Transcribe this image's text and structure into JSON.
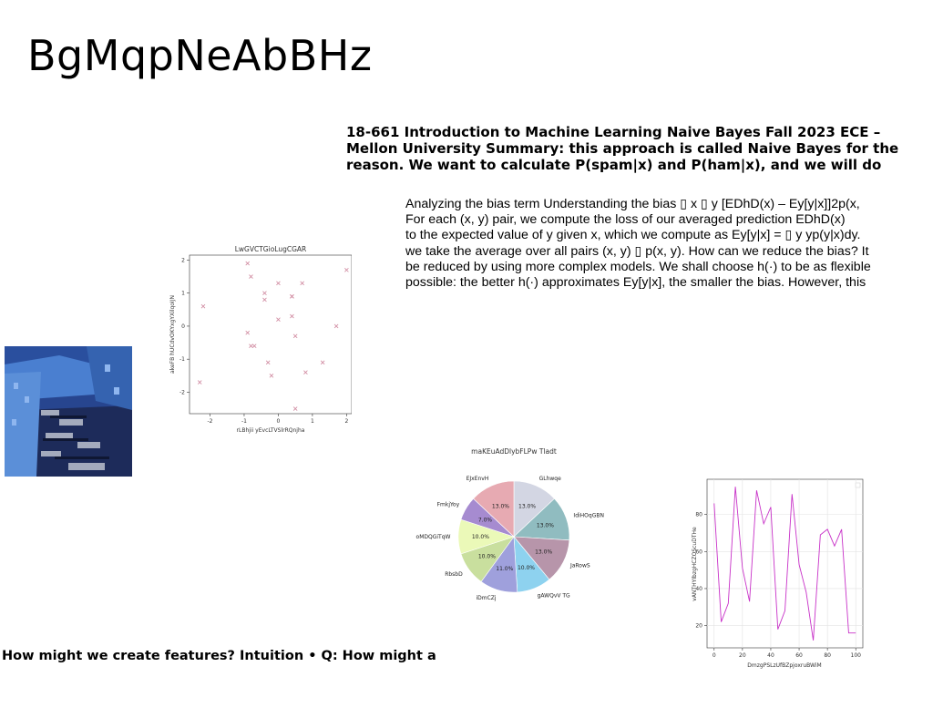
{
  "page": {
    "title": "BgMqpNeAbBHz",
    "heading": "18-661 Introduction to Machine Learning Naive Bayes Fall 2023 ECE –\nMellon University Summary: this approach is called Naive Bayes for the\nreason. We want to calculate P(spam|x) and P(ham|x), and we will do",
    "paragraph": "Analyzing the bias term Understanding the bias ▯ x ▯ y [EDhD(x) – Ey[y|x]]2p(x,\nFor each (x, y) pair, we compute the loss of our averaged prediction EDhD(x)\nto the expected value of y given x, which we compute as Ey[y|x] = ▯ y yp(y|x)dy.\nwe take the average over all pairs (x, y) ▯ p(x, y). How can we reduce the bias? It\nbe reduced by using more complex models. We shall choose h(·) to be as flexible\npossible: the better h(·) approximates Ey[y|x], the smaller the bias. However, this",
    "footer": "How might we create features? Intuition • Q: How might a"
  },
  "chart_data": [
    {
      "type": "scatter",
      "title": "LwGVCTGioLugCGAR",
      "xlabel": "rLBhjii yEvcLTVSlrRQnjha",
      "ylabel": "akeFB hUCdvOKYxgYXilqoIJN",
      "xlim": [
        -2.6,
        2.15
      ],
      "ylim": [
        -2.65,
        2.15
      ],
      "xticks": [
        -2,
        -1,
        0,
        1,
        2
      ],
      "yticks": [
        -2,
        -1,
        0,
        1,
        2
      ],
      "marker": "x",
      "color": "#d08aa0",
      "points": [
        [
          -2.3,
          -1.7
        ],
        [
          -2.2,
          0.6
        ],
        [
          -0.9,
          1.9
        ],
        [
          -0.8,
          1.5
        ],
        [
          -0.9,
          -0.2
        ],
        [
          -0.8,
          -0.6
        ],
        [
          -0.7,
          -0.6
        ],
        [
          -0.4,
          1.0
        ],
        [
          -0.4,
          0.8
        ],
        [
          -0.3,
          -1.1
        ],
        [
          -0.2,
          -1.5
        ],
        [
          0.0,
          1.3
        ],
        [
          0.0,
          0.2
        ],
        [
          0.4,
          0.9
        ],
        [
          0.4,
          0.9
        ],
        [
          0.4,
          0.3
        ],
        [
          0.5,
          -0.3
        ],
        [
          0.7,
          1.3
        ],
        [
          0.8,
          -1.4
        ],
        [
          1.3,
          -1.1
        ],
        [
          1.7,
          0.0
        ],
        [
          2.0,
          1.7
        ],
        [
          0.5,
          -2.5
        ]
      ]
    },
    {
      "type": "pie",
      "title": "maKEuAdDlybFLPw Tladt",
      "slices": [
        {
          "label": "GLhwqe",
          "value": 13.0,
          "pct": "13.0%",
          "color": "#d3d6e3"
        },
        {
          "label": "IdiHOqGBN",
          "value": 13.0,
          "pct": "13.0%",
          "color": "#90bcc0"
        },
        {
          "label": "JaRowS",
          "value": 13.0,
          "pct": "13.0%",
          "color": "#b795aa"
        },
        {
          "label": "gAWQvV TG",
          "value": 10.0,
          "pct": "10.0%",
          "color": "#8ed2ef"
        },
        {
          "label": "iDmCZj",
          "value": 11.0,
          "pct": "11.0%",
          "color": "#9fa0dc"
        },
        {
          "label": "RbsbD",
          "value": 10.0,
          "pct": "10.0%",
          "color": "#c9df9e"
        },
        {
          "label": "oMDQGiTqW",
          "value": 10.0,
          "pct": "10.0%",
          "color": "#ebf9b8"
        },
        {
          "label": "FmkjYoy",
          "value": 7.0,
          "pct": "7.0%",
          "color": "#a68bd0"
        },
        {
          "label": "EJxEnvH",
          "value": 13.0,
          "pct": "13.0%",
          "color": "#e7aab2"
        }
      ]
    },
    {
      "type": "line",
      "xlabel": "DmzgPSLzUfBZpjoxruBWiM",
      "ylabel": "vANTHYIbzgHCZOScuDTHe",
      "xlim": [
        -5,
        105
      ],
      "ylim": [
        8,
        99
      ],
      "xticks": [
        0,
        20,
        40,
        60,
        80,
        100
      ],
      "yticks": [
        20,
        40,
        60,
        80
      ],
      "color": "#c832c8",
      "x": [
        0,
        5,
        10,
        15,
        20,
        25,
        30,
        35,
        40,
        45,
        50,
        55,
        60,
        65,
        70,
        75,
        80,
        85,
        90,
        95,
        100
      ],
      "y": [
        86,
        22,
        32,
        95,
        51,
        33,
        93,
        75,
        84,
        18,
        28,
        91,
        53,
        38,
        12,
        69,
        72,
        63,
        72,
        16,
        16
      ]
    }
  ]
}
